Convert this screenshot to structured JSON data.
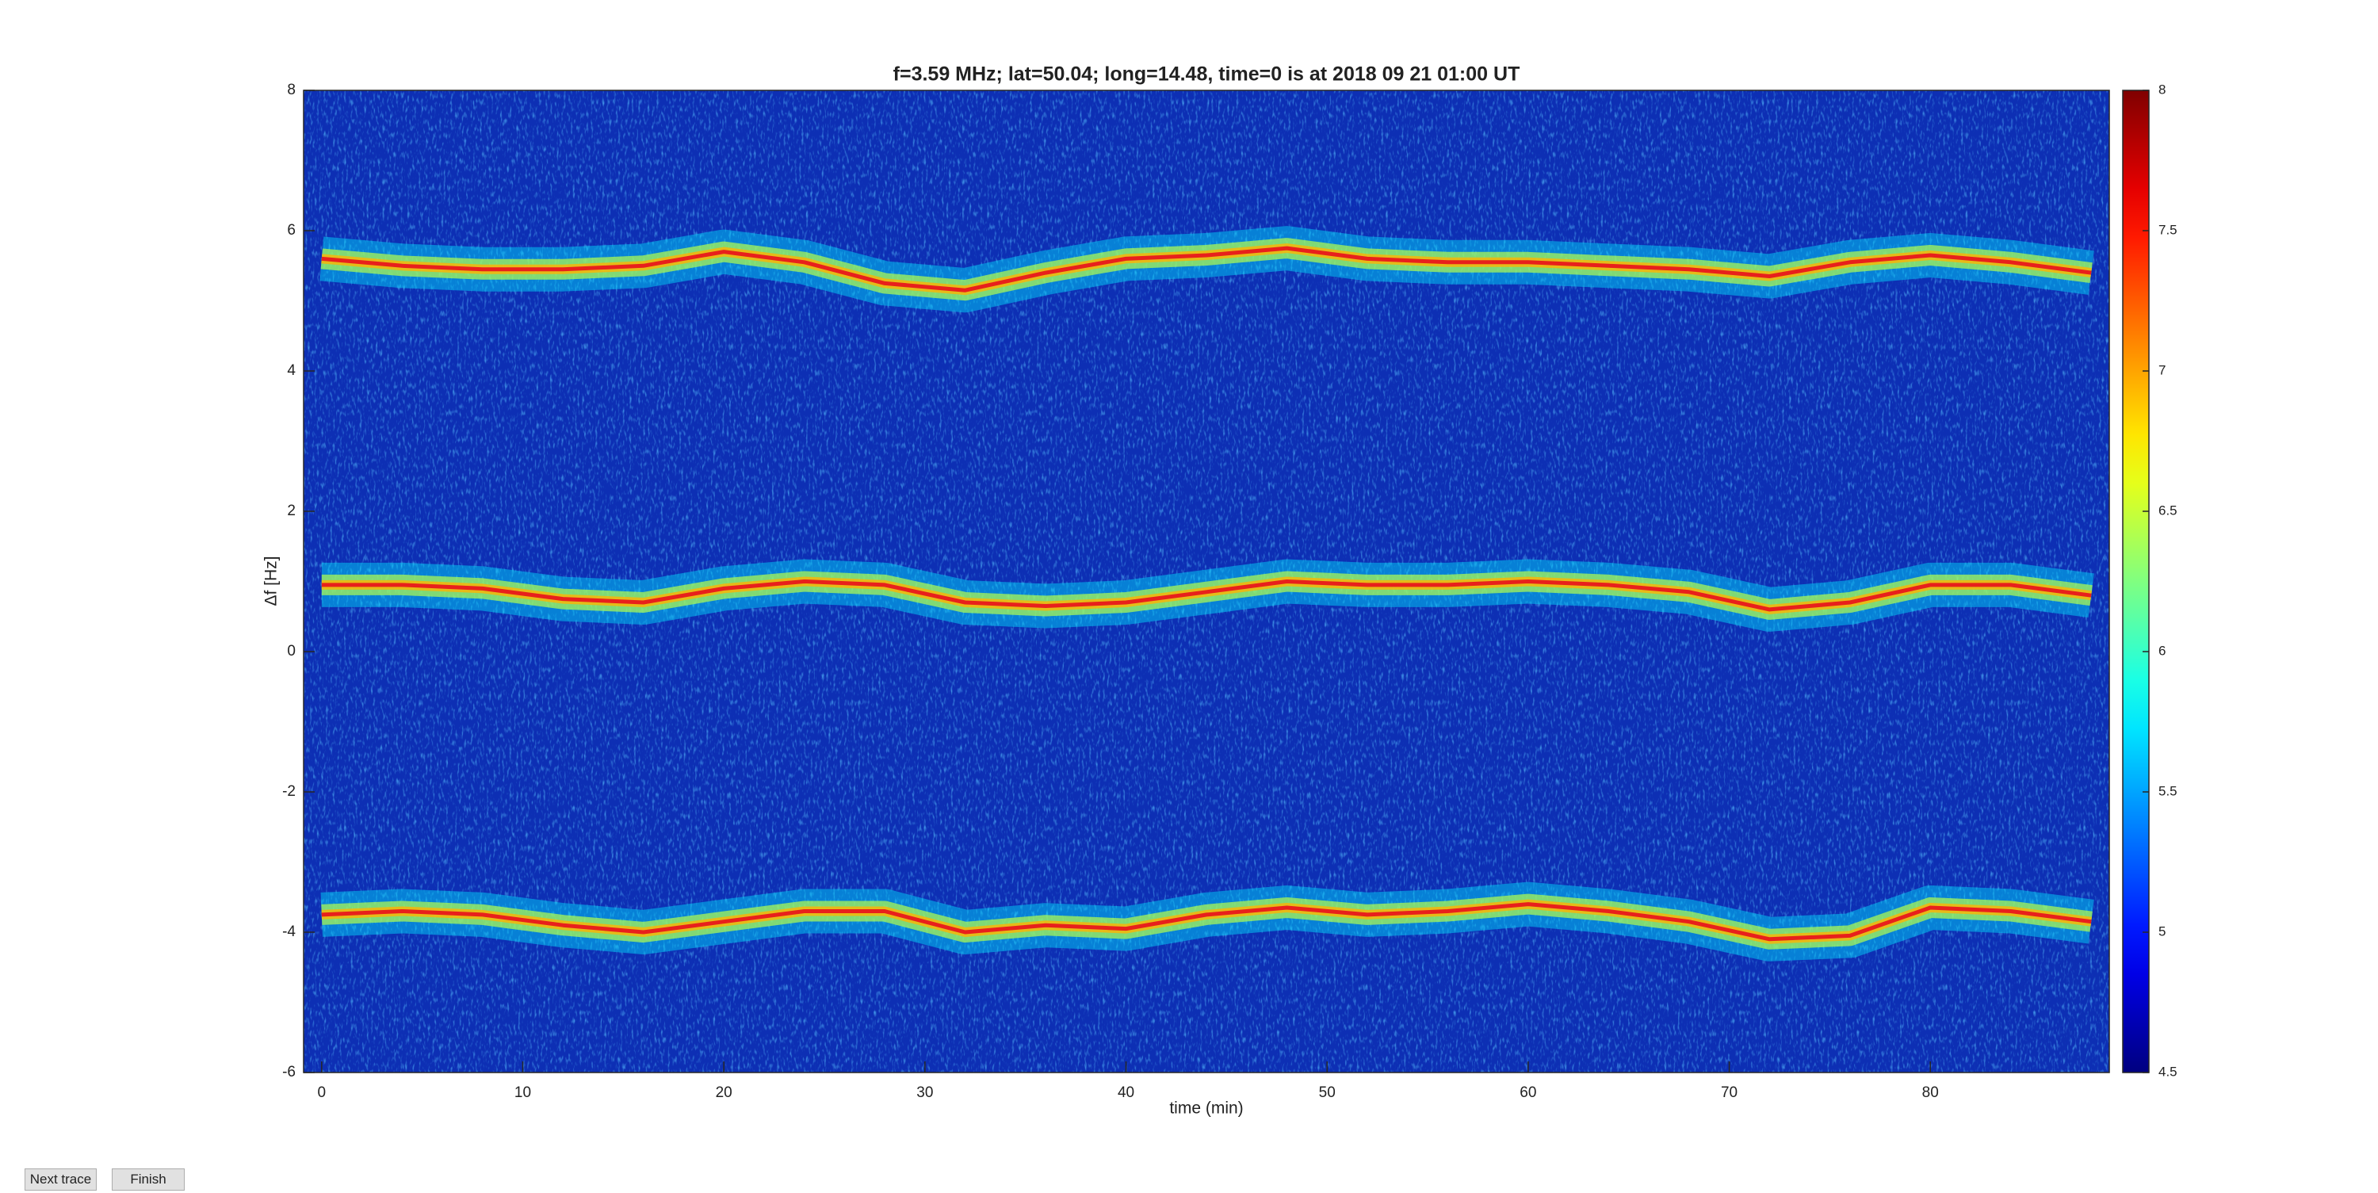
{
  "chart_data": {
    "type": "spectrogram",
    "title": "f=3.59 MHz;  lat=50.04; long=14.48, time=0 is at 2018 09 21 01:00 UT",
    "xlabel": "time (min)",
    "ylabel": "Δf [Hz]",
    "x": [
      0,
      4,
      8,
      12,
      16,
      20,
      24,
      28,
      32,
      36,
      40,
      44,
      48,
      52,
      56,
      60,
      64,
      68,
      72,
      76,
      80,
      84,
      88
    ],
    "series": [
      {
        "color": "#e8201c",
        "values": [
          5.6,
          5.5,
          5.45,
          5.45,
          5.5,
          5.7,
          5.55,
          5.25,
          5.15,
          5.4,
          5.6,
          5.65,
          5.75,
          5.6,
          5.55,
          5.55,
          5.5,
          5.45,
          5.35,
          5.55,
          5.65,
          5.55,
          5.4
        ]
      },
      {
        "color": "#e8201c",
        "values": [
          0.95,
          0.95,
          0.9,
          0.75,
          0.7,
          0.9,
          1.0,
          0.95,
          0.7,
          0.65,
          0.7,
          0.85,
          1.0,
          0.95,
          0.95,
          1.0,
          0.95,
          0.85,
          0.6,
          0.7,
          0.95,
          0.95,
          0.8
        ]
      },
      {
        "color": "#e8201c",
        "values": [
          -3.75,
          -3.7,
          -3.75,
          -3.9,
          -4.0,
          -3.85,
          -3.7,
          -3.7,
          -4.0,
          -3.9,
          -3.95,
          -3.75,
          -3.65,
          -3.75,
          -3.7,
          -3.6,
          -3.7,
          -3.85,
          -4.1,
          -4.05,
          -3.65,
          -3.7,
          -3.85
        ]
      }
    ],
    "xlim": [
      -0.9,
      88.9
    ],
    "xticks": [
      0,
      10,
      20,
      30,
      40,
      50,
      60,
      70,
      80
    ],
    "ylim": [
      -6,
      8
    ],
    "yticks": [
      -6,
      -4,
      -2,
      0,
      2,
      4,
      6,
      8
    ],
    "colormap": "jet",
    "clim": [
      4.5,
      8
    ],
    "cticks": [
      4.5,
      5,
      5.5,
      6,
      6.5,
      7,
      7.5,
      8
    ],
    "background": "#0d2fb4"
  },
  "controls": {
    "buttons": [
      "Next trace",
      "Finish"
    ]
  }
}
